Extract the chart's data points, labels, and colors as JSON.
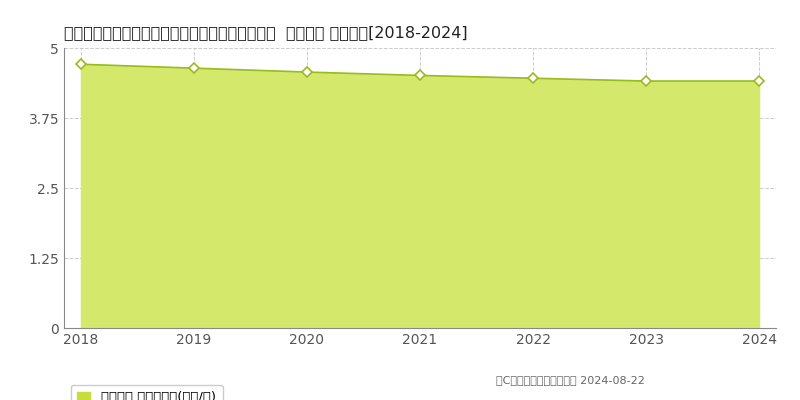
{
  "title": "徳島県鳴門市鳴門町土佐泊浦字黒山２５６番２０  地価公示 地価推移[2018-2024]",
  "years": [
    2018,
    2019,
    2020,
    2021,
    2022,
    2023,
    2024
  ],
  "values": [
    4.71,
    4.64,
    4.57,
    4.51,
    4.46,
    4.41,
    4.41
  ],
  "ylim": [
    0,
    5
  ],
  "yticks": [
    0,
    1.25,
    2.5,
    3.75,
    5
  ],
  "fill_color": "#d4e96b",
  "line_color": "#9aba1e",
  "marker_color": "#ffffff",
  "marker_edge_color": "#9aba1e",
  "grid_color": "#aaaaaa",
  "bg_color": "#ffffff",
  "legend_label": "地価公示 平均坪単価(万円/坪)",
  "legend_marker_color": "#c8dc3c",
  "copyright_text": "（C）土地価格ドットコム 2024-08-22",
  "title_fontsize": 11.5,
  "axis_fontsize": 10,
  "legend_fontsize": 9.5
}
